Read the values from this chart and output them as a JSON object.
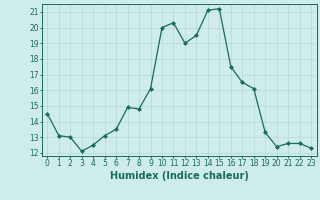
{
  "xlabel": "Humidex (Indice chaleur)",
  "x": [
    0,
    1,
    2,
    3,
    4,
    5,
    6,
    7,
    8,
    9,
    10,
    11,
    12,
    13,
    14,
    15,
    16,
    17,
    18,
    19,
    20,
    21,
    22,
    23
  ],
  "y": [
    14.5,
    13.1,
    13.0,
    12.1,
    12.5,
    13.1,
    13.5,
    14.9,
    14.8,
    16.1,
    20.0,
    20.3,
    19.0,
    19.5,
    21.1,
    21.2,
    17.5,
    16.5,
    16.1,
    13.3,
    12.4,
    12.6,
    12.6,
    12.3
  ],
  "line_color": "#1a6b5a",
  "marker": "D",
  "marker_size": 2.0,
  "bg_color": "#ceecea",
  "grid_color": "#b8d8d5",
  "xlim": [
    -0.5,
    23.5
  ],
  "ylim": [
    11.8,
    21.5
  ],
  "yticks": [
    12,
    13,
    14,
    15,
    16,
    17,
    18,
    19,
    20,
    21
  ],
  "xticks": [
    0,
    1,
    2,
    3,
    4,
    5,
    6,
    7,
    8,
    9,
    10,
    11,
    12,
    13,
    14,
    15,
    16,
    17,
    18,
    19,
    20,
    21,
    22,
    23
  ],
  "tick_label_fontsize": 5.5,
  "xlabel_fontsize": 7.0,
  "tick_color": "#1a6b5a",
  "axis_color": "#1a6b5a",
  "linewidth": 0.9
}
